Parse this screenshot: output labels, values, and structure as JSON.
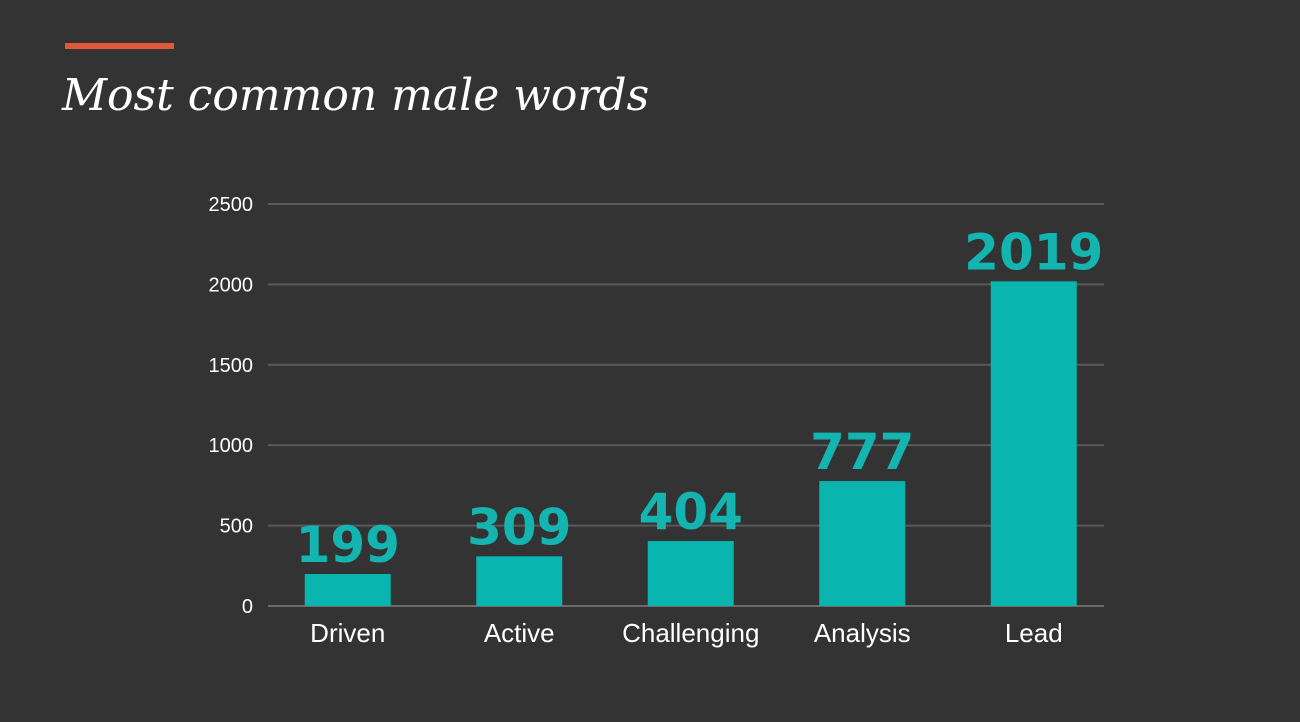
{
  "slide": {
    "title": "Most common male words"
  },
  "colors": {
    "background": "#333333",
    "accent": "#e0573a",
    "bar": "#0ab5b0",
    "data_label": "#14b4b0",
    "gridline": "#5a5a5a",
    "text": "#ffffff"
  },
  "chart_data": {
    "type": "bar",
    "title": "Most common male words",
    "categories": [
      "Driven",
      "Active",
      "Challenging",
      "Analysis",
      "Lead"
    ],
    "values": [
      199,
      309,
      404,
      777,
      2019
    ],
    "data_labels": [
      "199",
      "309",
      "404",
      "777",
      "2019"
    ],
    "y_ticks": [
      0,
      500,
      1000,
      1500,
      2000,
      2500
    ],
    "ylim": [
      0,
      2500
    ],
    "xlabel": "",
    "ylabel": "",
    "grid": true,
    "legend": "none"
  }
}
